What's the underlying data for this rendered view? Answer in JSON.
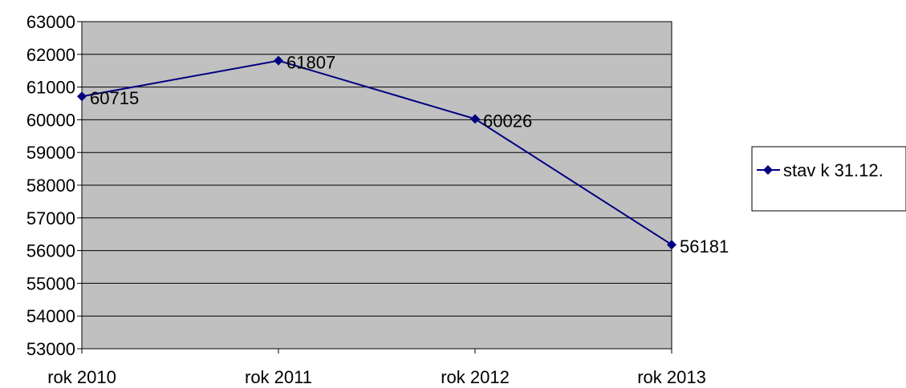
{
  "chart_data": {
    "type": "line",
    "categories": [
      "rok 2010",
      "rok 2011",
      "rok 2012",
      "rok 2013"
    ],
    "series": [
      {
        "name": "stav k 31.12.",
        "values": [
          60715,
          61807,
          60026,
          56181
        ],
        "color": "#000080",
        "marker": "diamond"
      }
    ],
    "data_labels": [
      "60715",
      "61807",
      "60026",
      "56181"
    ],
    "ylim": [
      53000,
      63000
    ],
    "y_ticks": [
      "53000",
      "54000",
      "55000",
      "56000",
      "57000",
      "58000",
      "59000",
      "60000",
      "61000",
      "62000",
      "63000"
    ],
    "grid": true,
    "plot_background": "#c0c0c0",
    "legend_position": "right"
  }
}
